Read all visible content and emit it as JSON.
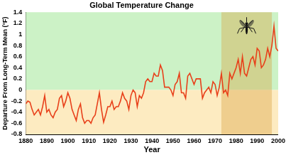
{
  "chart_data": {
    "type": "line",
    "title": "Global Temperature Change",
    "x_label": "Year",
    "y_label": "Departure From Long-Term Mean (°F)",
    "x": [
      1880,
      1881,
      1882,
      1883,
      1884,
      1885,
      1886,
      1887,
      1888,
      1889,
      1890,
      1891,
      1892,
      1893,
      1894,
      1895,
      1896,
      1897,
      1898,
      1899,
      1900,
      1901,
      1902,
      1903,
      1904,
      1905,
      1906,
      1907,
      1908,
      1909,
      1910,
      1911,
      1912,
      1913,
      1914,
      1915,
      1916,
      1917,
      1918,
      1919,
      1920,
      1921,
      1922,
      1923,
      1924,
      1925,
      1926,
      1927,
      1928,
      1929,
      1930,
      1931,
      1932,
      1933,
      1934,
      1935,
      1936,
      1937,
      1938,
      1939,
      1940,
      1941,
      1942,
      1943,
      1944,
      1945,
      1946,
      1947,
      1948,
      1949,
      1950,
      1951,
      1952,
      1953,
      1954,
      1955,
      1956,
      1957,
      1958,
      1959,
      1960,
      1961,
      1962,
      1963,
      1964,
      1965,
      1966,
      1967,
      1968,
      1969,
      1970,
      1971,
      1972,
      1973,
      1974,
      1975,
      1976,
      1977,
      1978,
      1979,
      1980,
      1981,
      1982,
      1983,
      1984,
      1985,
      1986,
      1987,
      1988,
      1989,
      1990,
      1991,
      1992,
      1993,
      1994,
      1995,
      1996,
      1997,
      1998,
      1999,
      2000
    ],
    "values": [
      -0.25,
      -0.2,
      -0.22,
      -0.35,
      -0.45,
      -0.4,
      -0.35,
      -0.45,
      -0.3,
      -0.1,
      -0.4,
      -0.35,
      -0.45,
      -0.5,
      -0.4,
      -0.35,
      -0.15,
      -0.1,
      -0.3,
      -0.2,
      -0.05,
      -0.15,
      -0.35,
      -0.45,
      -0.55,
      -0.35,
      -0.25,
      -0.5,
      -0.6,
      -0.55,
      -0.55,
      -0.6,
      -0.5,
      -0.45,
      -0.25,
      -0.05,
      -0.35,
      -0.58,
      -0.45,
      -0.3,
      -0.3,
      -0.2,
      -0.35,
      -0.3,
      -0.3,
      -0.2,
      -0.05,
      -0.15,
      -0.2,
      -0.35,
      -0.1,
      0,
      -0.05,
      -0.3,
      -0.1,
      -0.15,
      -0.05,
      0.15,
      0.2,
      0.15,
      0.15,
      0.3,
      0.25,
      0.25,
      0.45,
      0.35,
      0.05,
      0.05,
      0.05,
      0,
      -0.1,
      0.1,
      0.15,
      0.3,
      -0.05,
      -0.05,
      -0.15,
      0.25,
      0.3,
      0.2,
      0.1,
      0.2,
      0.2,
      0.2,
      -0.15,
      -0.05,
      0,
      0.05,
      -0.05,
      0.15,
      0.1,
      -0.1,
      0.05,
      0.3,
      -0.05,
      0,
      -0.1,
      0.3,
      0.2,
      0.3,
      0.4,
      0.55,
      0.3,
      0.6,
      0.3,
      0.25,
      0.4,
      0.55,
      0.6,
      0.45,
      0.75,
      0.7,
      0.4,
      0.45,
      0.55,
      0.75,
      0.6,
      0.8,
      1.15,
      0.75,
      0.7
    ],
    "color": "#e8401a",
    "xlim": [
      1880,
      2000
    ],
    "xticks": [
      1880,
      1890,
      1900,
      1910,
      1920,
      1930,
      1940,
      1950,
      1960,
      1970,
      1980,
      1990,
      2000
    ],
    "ylim": [
      -0.8,
      1.4
    ],
    "yticks": [
      -0.8,
      -0.6,
      -0.4,
      -0.2,
      0,
      0.2,
      0.4,
      0.6,
      0.8,
      1,
      1.2,
      1.4
    ],
    "baseline": 0,
    "shaded_span": [
      1973,
      1997
    ],
    "grid": false
  }
}
